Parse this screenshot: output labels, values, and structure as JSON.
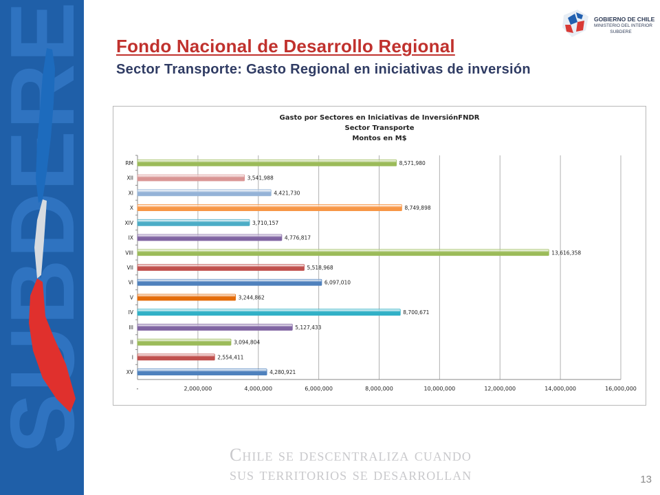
{
  "sidebar": {
    "brand_text": "SUBDERE"
  },
  "logo": {
    "line1": "GOBIERNO DE CHILE",
    "line2": "MINISTERIO DEL INTERIOR",
    "line3": "SUBDERE"
  },
  "slide": {
    "title": "Fondo Nacional de Desarrollo Regional",
    "subtitle": "Sector Transporte: Gasto Regional en  iniciativas de inversión",
    "tagline_line1": "Chile se descentraliza cuando",
    "tagline_line2": "sus territorios se desarrollan",
    "page_number": "13"
  },
  "colors": {
    "title_red": "#c0312d",
    "subtitle_navy": "#2f3b63",
    "sidebar_blue": "#1f5fa8"
  },
  "chart_data": {
    "type": "bar",
    "orientation": "horizontal",
    "title_lines": [
      "Gasto por Sectores en Iniciativas de InversiónFNDR",
      "Sector Transporte",
      "Montos en M$"
    ],
    "categories": [
      "RM",
      "XII",
      "XI",
      "X",
      "XIV",
      "IX",
      "VIII",
      "VII",
      "VI",
      "V",
      "IV",
      "III",
      "II",
      "I",
      "XV"
    ],
    "values": [
      8571980,
      3541988,
      4421730,
      8749898,
      3710157,
      4776817,
      13616358,
      5518968,
      6097010,
      3244862,
      8700671,
      5127433,
      3094804,
      2554411,
      4280921
    ],
    "value_labels": [
      "8,571,980",
      "3,541,988",
      "4,421,730",
      "8,749,898",
      "3,710,157",
      "4,776,817",
      "13,616,358",
      "5,518,968",
      "6,097,010",
      "3,244,862",
      "8,700,671",
      "5,127,433",
      "3,094,804",
      "2,554,411",
      "4,280,921"
    ],
    "bar_colors": [
      "#9bbb59",
      "#d99594",
      "#95b3d7",
      "#f79646",
      "#4bacc6",
      "#8064a2",
      "#9bbb59",
      "#c0504d",
      "#4f81bd",
      "#e46c0a",
      "#31b0c6",
      "#8064a2",
      "#9bbb59",
      "#c0504d",
      "#4f81bd"
    ],
    "x_ticks": [
      0,
      2000000,
      4000000,
      6000000,
      8000000,
      10000000,
      12000000,
      14000000,
      16000000
    ],
    "x_tick_labels": [
      "-",
      "2,000,000",
      "4,000,000",
      "6,000,000",
      "8,000,000",
      "10,000,000",
      "12,000,000",
      "14,000,000",
      "16,000,000"
    ],
    "xlim": [
      0,
      16000000
    ],
    "grid": "vertical",
    "legend": "none"
  }
}
